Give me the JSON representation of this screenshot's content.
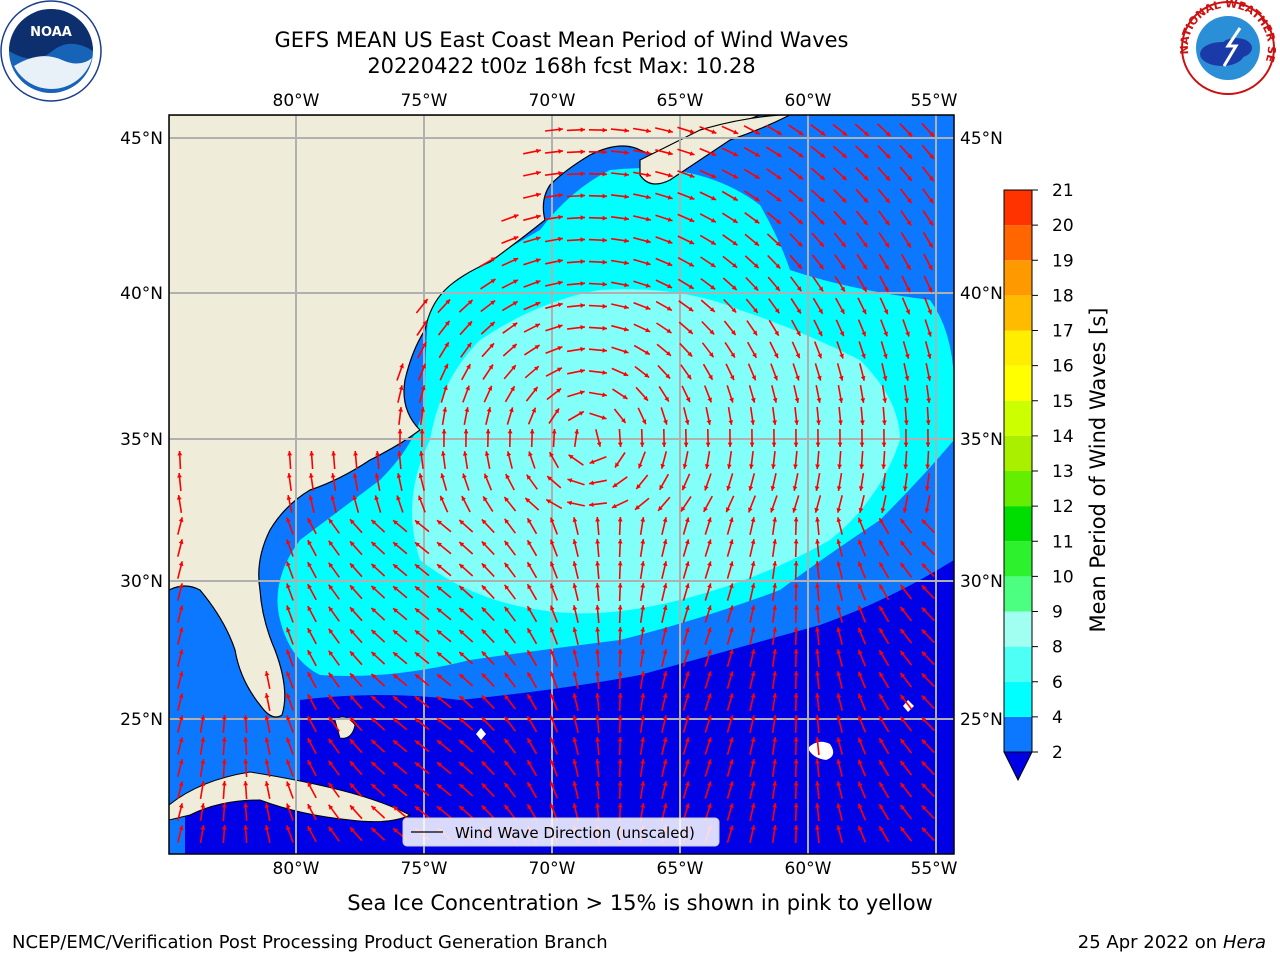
{
  "header": {
    "title": "GEFS MEAN US East Coast Mean Period of Wind Waves",
    "subtitle": "20220422 t00z 168h fcst   Max: 10.28"
  },
  "logos": {
    "left": {
      "name": "noaa-logo",
      "text": "NOAA"
    },
    "right": {
      "name": "nws-logo",
      "text": "NATIONAL WEATHER SERVICE"
    }
  },
  "map": {
    "lon_labels": [
      "80°W",
      "75°W",
      "70°W",
      "65°W",
      "60°W",
      "55°W"
    ],
    "lat_labels": [
      "45°N",
      "40°N",
      "35°N",
      "30°N",
      "25°N"
    ],
    "legend_label": "Wind Wave Direction (unscaled)",
    "arrow_color": "#ff0000",
    "land_color": "#efedda",
    "ocean_colors": [
      "#0000e6",
      "#0b78ff",
      "#00ffff",
      "#83fff9"
    ]
  },
  "colorbar": {
    "label": "Mean Period of Wind Waves [s]",
    "ticks": [
      "2",
      "4",
      "6",
      "8",
      "9",
      "10",
      "11",
      "12",
      "13",
      "14",
      "15",
      "16",
      "17",
      "18",
      "19",
      "20",
      "21"
    ],
    "colors": [
      "#0b78ff",
      "#00ffff",
      "#4dfff5",
      "#a0fff0",
      "#4dff80",
      "#2cf12c",
      "#00dd00",
      "#66ee00",
      "#aaee00",
      "#ccff00",
      "#ffff00",
      "#ffee00",
      "#ffbb00",
      "#ff9900",
      "#ff6600",
      "#ff3300"
    ],
    "under_color": "#0000e6"
  },
  "notes": {
    "sea_ice": "Sea Ice Concentration > 15% is shown in pink to yellow"
  },
  "footer": {
    "left": "NCEP/EMC/Verification Post Processing Product Generation Branch",
    "date": "25 Apr 2022 on",
    "machine": "Hera"
  }
}
